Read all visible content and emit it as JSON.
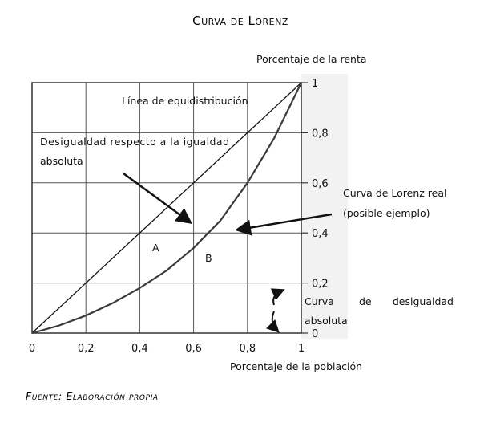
{
  "chart_data": {
    "type": "line",
    "title": "Curva de Lorenz",
    "xlabel": "Porcentaje de la población",
    "ylabel": "Porcentaje de la renta",
    "xlim": [
      0,
      1
    ],
    "ylim": [
      0,
      1
    ],
    "x_ticks": [
      "0",
      "0,2",
      "0,4",
      "0,6",
      "0,8",
      "1"
    ],
    "y_ticks": [
      "0",
      "0,2",
      "0,4",
      "0,6",
      "0,8",
      "1"
    ],
    "grid": true,
    "series": [
      {
        "name": "Línea de equidistribución",
        "x": [
          0,
          1
        ],
        "y": [
          0,
          1
        ]
      },
      {
        "name": "Curva de Lorenz real",
        "x": [
          0,
          0.1,
          0.2,
          0.3,
          0.4,
          0.5,
          0.6,
          0.7,
          0.8,
          0.9,
          1.0
        ],
        "y": [
          0,
          0.03,
          0.07,
          0.12,
          0.18,
          0.25,
          0.34,
          0.45,
          0.6,
          0.78,
          1.0
        ]
      }
    ],
    "annotations": {
      "equidistribution": "Línea de equidistribución",
      "inequality_line1": "Desigualdad respecto a la igualdad",
      "inequality_line2": "absoluta",
      "lorenz_line1": "Curva de Lorenz real",
      "lorenz_line2": "(posible ejemplo)",
      "area_a": "A",
      "area_b": "B",
      "curve_inequality_word1": "Curva",
      "curve_inequality_word2": "de",
      "curve_inequality_word3": "desigualdad",
      "curve_inequality_line2": "absoluta"
    }
  },
  "source": "Fuente: Elaboración propia"
}
